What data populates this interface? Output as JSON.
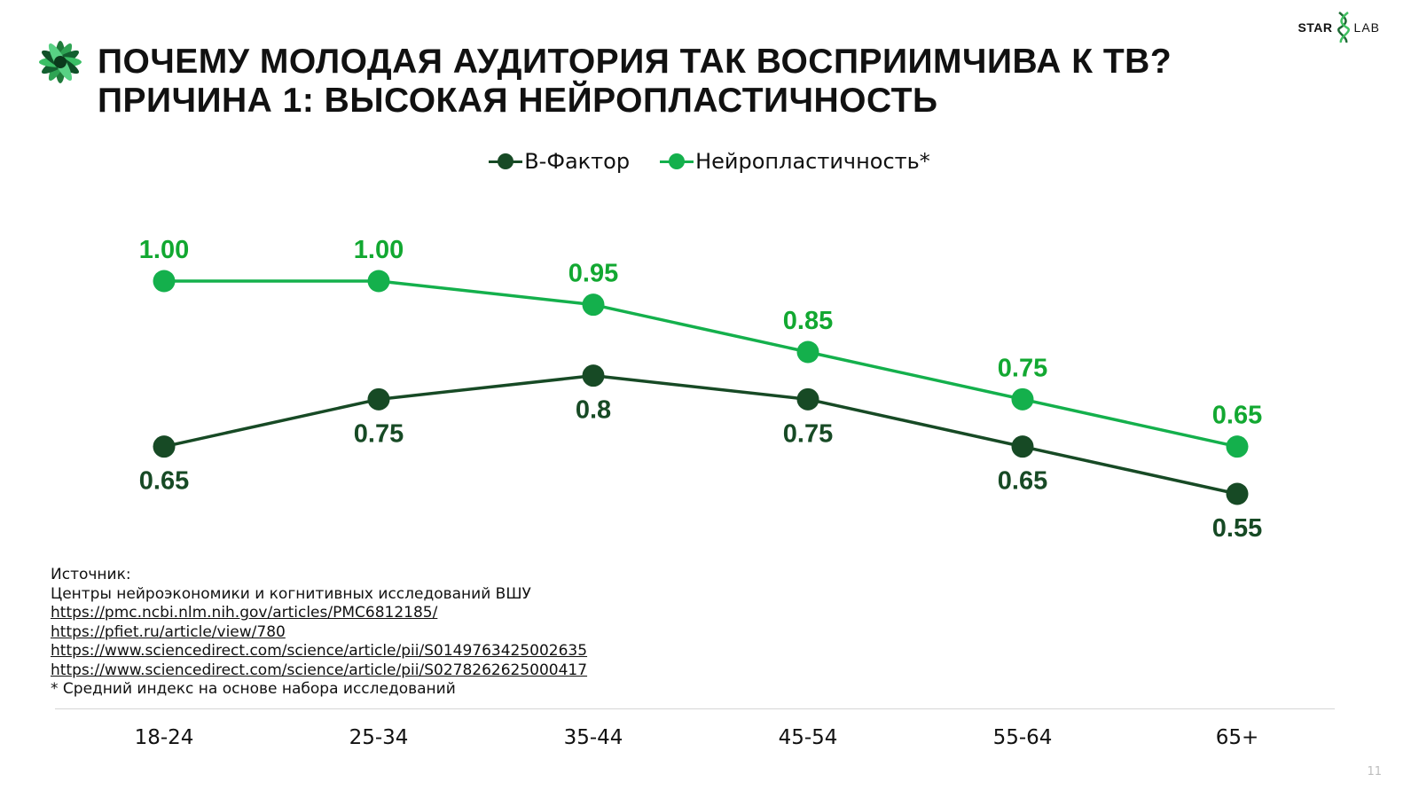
{
  "header": {
    "title_line1": "ПОЧЕМУ МОЛОДАЯ АУДИТОРИЯ ТАК ВОСПРИИМЧИВА К ТВ?",
    "title_line2": "ПРИЧИНА 1: ВЫСОКАЯ НЕЙРОПЛАСТИЧНОСТЬ"
  },
  "brand": {
    "star": "STAR",
    "lab": "LAB"
  },
  "chart_data": {
    "type": "line",
    "categories": [
      "18-24",
      "25-34",
      "35-44",
      "45-54",
      "55-64",
      "65+"
    ],
    "series": [
      {
        "name": "В-Фактор",
        "color": "#174a25",
        "values": [
          0.65,
          0.75,
          0.8,
          0.75,
          0.65,
          0.55
        ],
        "labels": [
          "0.65",
          "0.75",
          "0.8",
          "0.75",
          "0.65",
          "0.55"
        ],
        "label_position": "below"
      },
      {
        "name": "Нейропластичность*",
        "color": "#14b04c",
        "values": [
          1.0,
          1.0,
          0.95,
          0.85,
          0.75,
          0.65
        ],
        "labels": [
          "1.00",
          "1.00",
          "0.95",
          "0.85",
          "0.75",
          "0.65"
        ],
        "label_position": "above"
      }
    ],
    "label_colors": {
      "В-Фактор": "#174a25",
      "Нейропластичность*": "#12a831"
    },
    "ylim": [
      0.5,
      1.05
    ],
    "legend_position": "top-center",
    "grid": false
  },
  "sources": {
    "heading": "Источник:",
    "org": "Центры нейроэкономики и когнитивных исследований ВШУ",
    "links": [
      "https://pmc.ncbi.nlm.nih.gov/articles/PMC6812185/",
      "https://pfiet.ru/article/view/780",
      "https://www.sciencedirect.com/science/article/pii/S0149763425002635",
      "https://www.sciencedirect.com/science/article/pii/S0278262625000417"
    ],
    "footnote": "* Средний индекс на основе набора исследований"
  },
  "page_number": "11"
}
